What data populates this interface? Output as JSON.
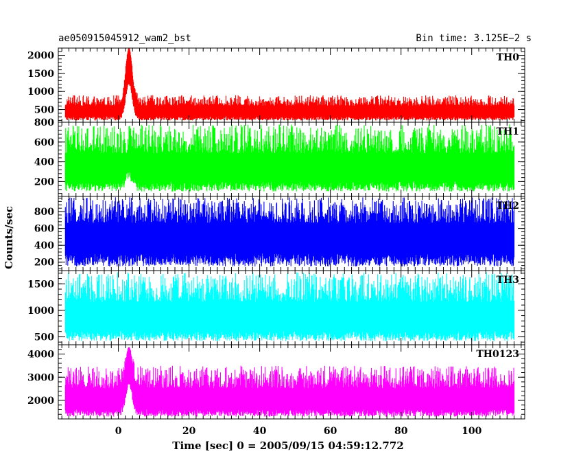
{
  "header": {
    "title": "ae050915045912_wam2_bst",
    "bin_time": "Bin time: 3.125E−2 s"
  },
  "chart_data": {
    "type": "line",
    "ylabel": "Counts/sec",
    "xlabel": "Time [sec] 0 = 2005/09/15 04:59:12.772",
    "xlim": [
      -17,
      115
    ],
    "x_ticks": [
      0,
      20,
      40,
      60,
      80,
      100
    ],
    "x_range_data": [
      -15,
      112
    ],
    "bin_time_s": 0.03125,
    "burst_peak_time": 3,
    "grid": false,
    "panels": [
      {
        "name": "TH0",
        "color": "#ff0000",
        "ylim": [
          150,
          2200
        ],
        "yticks": [
          500,
          1000,
          1500,
          2000
        ],
        "baseline": 450,
        "noise_low": 200,
        "noise_high": 900,
        "peak": 2200
      },
      {
        "name": "TH1",
        "color": "#00ff00",
        "ylim": [
          50,
          800
        ],
        "yticks": [
          200,
          400,
          600,
          800
        ],
        "baseline": 330,
        "noise_low": 100,
        "noise_high": 780,
        "peak": 800
      },
      {
        "name": "TH2",
        "color": "#0000ff",
        "ylim": [
          100,
          980
        ],
        "yticks": [
          200,
          400,
          600,
          800
        ],
        "baseline": 500,
        "noise_low": 150,
        "noise_high": 970,
        "peak": 970
      },
      {
        "name": "TH3",
        "color": "#00ffff",
        "ylim": [
          350,
          1750
        ],
        "yticks": [
          500,
          1000,
          1500
        ],
        "baseline": 850,
        "noise_low": 420,
        "noise_high": 1720,
        "peak": 1720
      },
      {
        "name": "TH0123",
        "color": "#ff00ff",
        "ylim": [
          1200,
          4400
        ],
        "yticks": [
          2000,
          3000,
          4000
        ],
        "baseline": 2000,
        "noise_low": 1300,
        "noise_high": 3500,
        "peak": 4300
      }
    ]
  }
}
